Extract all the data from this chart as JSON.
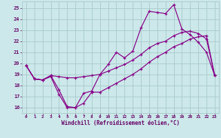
{
  "background_color": "#cce8ea",
  "grid_color": "#aacccc",
  "line_color": "#880088",
  "xlabel": "Windchill (Refroidissement éolien,°C)",
  "xlabel_color": "#660066",
  "tick_color": "#660066",
  "xlim": [
    -0.5,
    23.5
  ],
  "ylim": [
    15.5,
    25.6
  ],
  "yticks": [
    16,
    17,
    18,
    19,
    20,
    21,
    22,
    23,
    24,
    25
  ],
  "xticks": [
    0,
    1,
    2,
    3,
    4,
    5,
    6,
    7,
    8,
    9,
    10,
    11,
    12,
    13,
    14,
    15,
    16,
    17,
    18,
    19,
    20,
    21,
    22,
    23
  ],
  "curve1": [
    19.8,
    18.6,
    18.5,
    18.8,
    17.2,
    16.0,
    16.0,
    17.3,
    17.5,
    19.0,
    19.9,
    21.0,
    20.5,
    21.1,
    23.2,
    24.7,
    24.6,
    24.5,
    25.3,
    23.1,
    22.6,
    21.9,
    21.0,
    18.9
  ],
  "curve2": [
    19.8,
    18.6,
    18.5,
    18.9,
    17.6,
    16.1,
    16.0,
    16.4,
    17.4,
    17.4,
    17.8,
    18.2,
    18.6,
    19.0,
    19.5,
    20.1,
    20.6,
    21.0,
    21.5,
    21.8,
    22.2,
    22.4,
    22.5,
    18.9
  ],
  "curve3": [
    19.8,
    18.6,
    18.5,
    18.9,
    18.8,
    18.7,
    18.7,
    18.8,
    18.9,
    19.0,
    19.3,
    19.6,
    19.9,
    20.3,
    20.8,
    21.4,
    21.8,
    22.0,
    22.5,
    22.8,
    22.9,
    22.7,
    22.2,
    18.9
  ]
}
